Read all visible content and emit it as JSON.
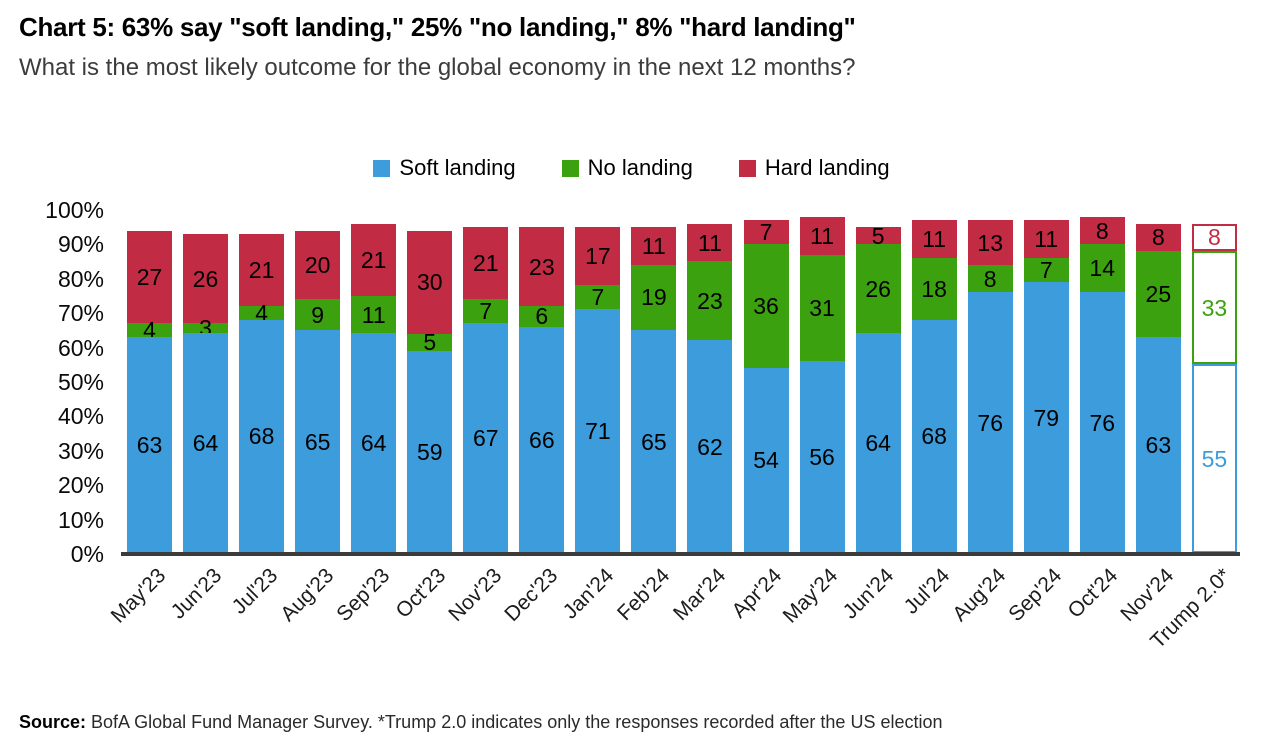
{
  "header": {
    "title": "Chart 5: 63% say \"soft landing,\" 25% \"no landing,\" 8% \"hard landing\"",
    "subtitle": "What is the most likely outcome for the global economy in the next 12 months?"
  },
  "chart_data": {
    "type": "bar",
    "stacked": true,
    "title": "Chart 5: 63% say \"soft landing,\" 25% \"no landing,\" 8% \"hard landing\"",
    "subtitle": "What is the most likely outcome for the global economy in the next 12 months?",
    "categories": [
      "May'23",
      "Jun'23",
      "Jul'23",
      "Aug'23",
      "Sep'23",
      "Oct'23",
      "Nov'23",
      "Dec'23",
      "Jan'24",
      "Feb'24",
      "Mar'24",
      "Apr'24",
      "May'24",
      "Jun'24",
      "Jul'24",
      "Aug'24",
      "Sep'24",
      "Oct'24",
      "Nov'24",
      "Trump 2.0*"
    ],
    "series": [
      {
        "name": "Soft landing",
        "color": "#3D9CDB",
        "values": [
          63,
          64,
          68,
          65,
          64,
          59,
          67,
          66,
          71,
          65,
          62,
          54,
          56,
          64,
          68,
          76,
          79,
          76,
          63,
          55
        ]
      },
      {
        "name": "No landing",
        "color": "#3CA10F",
        "values": [
          4,
          3,
          4,
          9,
          11,
          5,
          7,
          6,
          7,
          19,
          23,
          36,
          31,
          26,
          18,
          8,
          7,
          14,
          25,
          33
        ]
      },
      {
        "name": "Hard landing",
        "color": "#C22B44",
        "values": [
          27,
          26,
          21,
          20,
          21,
          30,
          21,
          23,
          17,
          11,
          11,
          7,
          11,
          5,
          11,
          13,
          11,
          8,
          8,
          8
        ]
      }
    ],
    "outlined_category": "Trump 2.0*",
    "yticks": [
      "100%",
      "90%",
      "80%",
      "70%",
      "60%",
      "50%",
      "40%",
      "30%",
      "20%",
      "10%",
      "0%"
    ],
    "ylim": [
      0,
      100
    ],
    "grid": false,
    "legend_position": "top"
  },
  "footer": {
    "source_label": "Source:",
    "source_text": " BofA Global Fund Manager Survey. *Trump 2.0 indicates only the responses recorded after the US election"
  }
}
